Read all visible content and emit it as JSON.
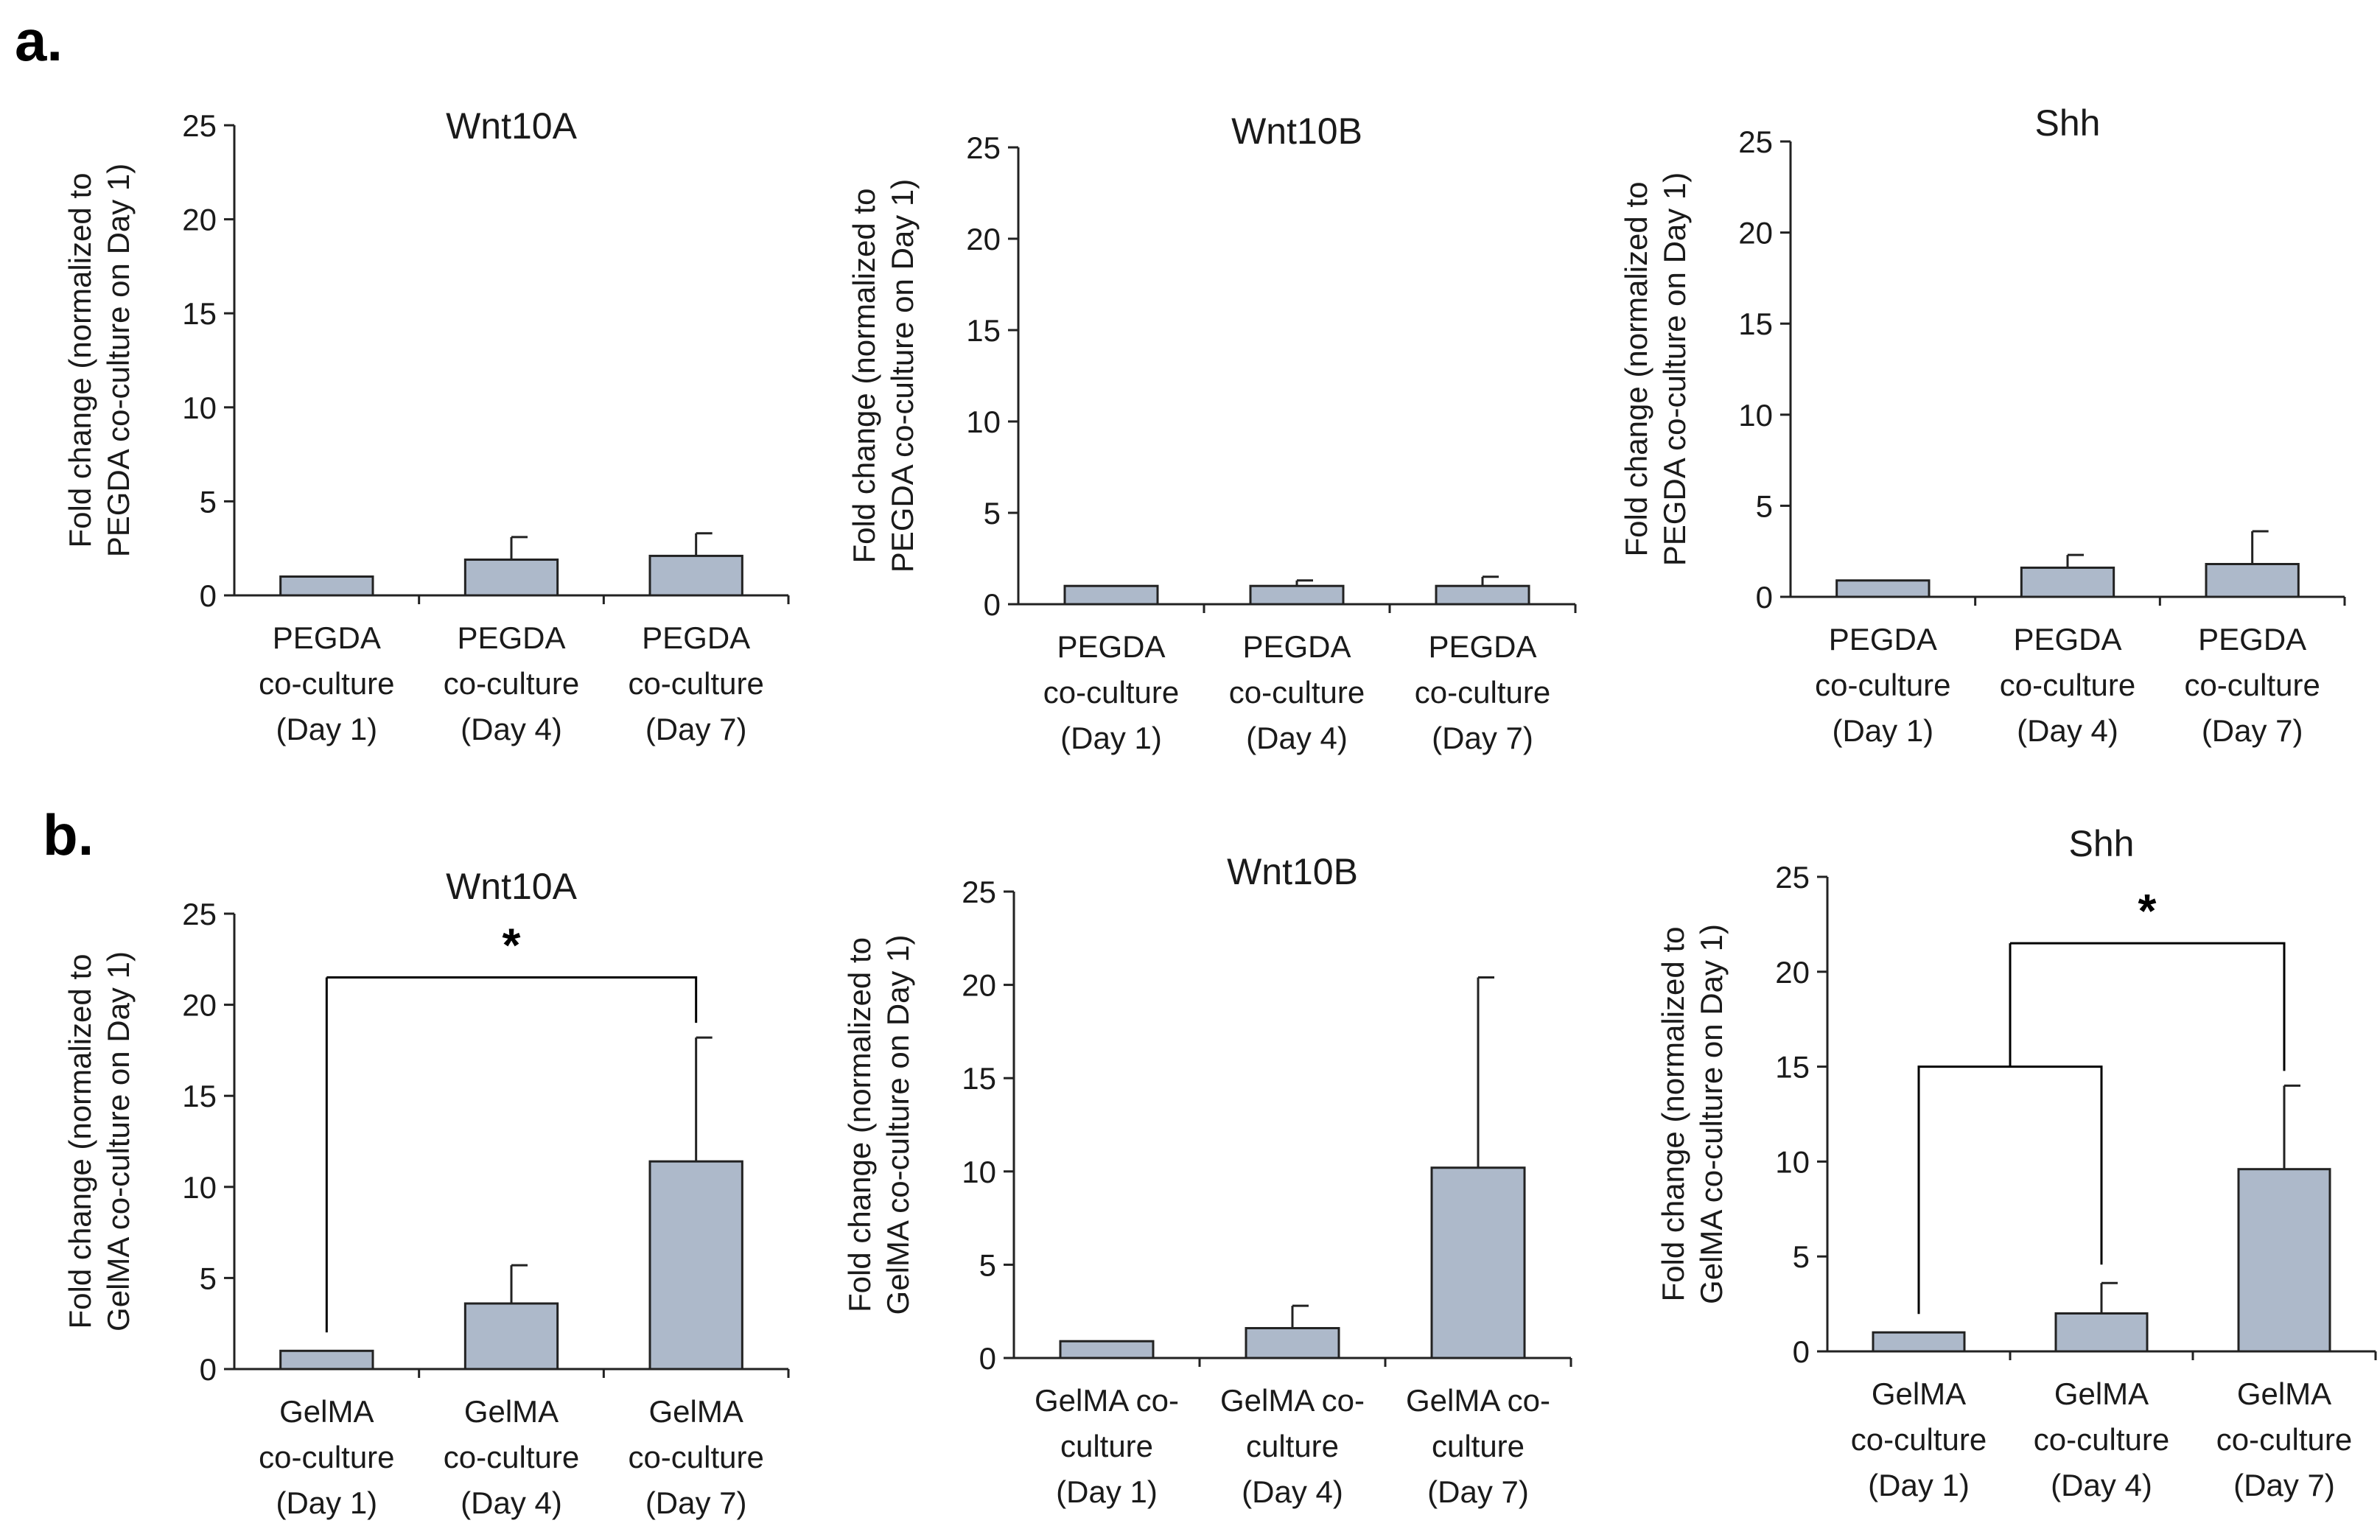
{
  "panels": [
    {
      "label": "a."
    },
    {
      "label": "b."
    }
  ],
  "colors": {
    "bar_fill": "#adb9ca",
    "bar_stroke": "#222222",
    "axis": "#222222"
  },
  "chart_data": [
    {
      "type": "bar",
      "panel": "a",
      "title": "Wnt10A",
      "ylabel": [
        "Fold change (normalized to",
        "PEGDA co-culture on Day 1)"
      ],
      "ylim": [
        0,
        25
      ],
      "yticks": [
        0,
        5,
        10,
        15,
        20,
        25
      ],
      "categories": [
        [
          "PEGDA",
          "co-culture",
          "(Day 1)"
        ],
        [
          "PEGDA",
          "co-culture",
          "(Day 4)"
        ],
        [
          "PEGDA",
          "co-culture",
          "(Day 7)"
        ]
      ],
      "values": [
        1.0,
        1.9,
        2.1
      ],
      "errors": [
        0.0,
        1.2,
        1.2
      ],
      "significance": []
    },
    {
      "type": "bar",
      "panel": "a",
      "title": "Wnt10B",
      "ylabel": [
        "Fold change (normalized to",
        "PEGDA co-culture on Day 1)"
      ],
      "ylim": [
        0,
        25
      ],
      "yticks": [
        0,
        5,
        10,
        15,
        20,
        25
      ],
      "categories": [
        [
          "PEGDA",
          "co-culture",
          "(Day 1)"
        ],
        [
          "PEGDA",
          "co-culture",
          "(Day 4)"
        ],
        [
          "PEGDA",
          "co-culture",
          "(Day 7)"
        ]
      ],
      "values": [
        1.0,
        1.0,
        1.0
      ],
      "errors": [
        0.0,
        0.3,
        0.5
      ],
      "significance": []
    },
    {
      "type": "bar",
      "panel": "a",
      "title": "Shh",
      "ylabel": [
        "Fold change (normalized to",
        "PEGDA co-culture on Day 1)"
      ],
      "ylim": [
        0,
        25
      ],
      "yticks": [
        0,
        5,
        10,
        15,
        20,
        25
      ],
      "categories": [
        [
          "PEGDA",
          "co-culture",
          "(Day 1)"
        ],
        [
          "PEGDA",
          "co-culture",
          "(Day 4)"
        ],
        [
          "PEGDA",
          "co-culture",
          "(Day 7)"
        ]
      ],
      "values": [
        0.9,
        1.6,
        1.8
      ],
      "errors": [
        0.0,
        0.7,
        1.8
      ],
      "significance": []
    },
    {
      "type": "bar",
      "panel": "b",
      "title": "Wnt10A",
      "ylabel": [
        "Fold change (normalized to",
        "GelMA co-culture on Day 1)"
      ],
      "ylim": [
        0,
        25
      ],
      "yticks": [
        0,
        5,
        10,
        15,
        20,
        25
      ],
      "categories": [
        [
          "GelMA",
          "co-culture",
          "(Day 1)"
        ],
        [
          "GelMA",
          "co-culture",
          "(Day 4)"
        ],
        [
          "GelMA",
          "co-culture",
          "(Day 7)"
        ]
      ],
      "values": [
        1.0,
        3.6,
        11.4
      ],
      "errors": [
        0.0,
        2.1,
        6.8
      ],
      "significance": [
        {
          "from": [
            0
          ],
          "to": [
            2
          ],
          "bracket_y": 21.5,
          "label": "*"
        }
      ]
    },
    {
      "type": "bar",
      "panel": "b",
      "title": "Wnt10B",
      "ylabel": [
        "Fold change (normalized to",
        "GelMA co-culture on Day 1)"
      ],
      "ylim": [
        0,
        25
      ],
      "yticks": [
        0,
        5,
        10,
        15,
        20,
        25
      ],
      "categories": [
        [
          "GelMA co-",
          "culture",
          "(Day 1)"
        ],
        [
          "GelMA co-",
          "culture",
          "(Day 4)"
        ],
        [
          "GelMA co-",
          "culture",
          "(Day 7)"
        ]
      ],
      "values": [
        0.9,
        1.6,
        10.2
      ],
      "errors": [
        0.0,
        1.2,
        10.2
      ],
      "significance": []
    },
    {
      "type": "bar",
      "panel": "b",
      "title": "Shh",
      "ylabel": [
        "Fold change (normalized to",
        "GelMA co-culture on Day 1)"
      ],
      "ylim": [
        0,
        25
      ],
      "yticks": [
        0,
        5,
        10,
        15,
        20,
        25
      ],
      "categories": [
        [
          "GelMA",
          "co-culture",
          "(Day 1)"
        ],
        [
          "GelMA",
          "co-culture",
          "(Day 4)"
        ],
        [
          "GelMA",
          "co-culture",
          "(Day 7)"
        ]
      ],
      "values": [
        1.0,
        2.0,
        9.6
      ],
      "errors": [
        0.0,
        1.6,
        4.4
      ],
      "significance": [
        {
          "from": [
            0,
            1
          ],
          "to": [
            2
          ],
          "inner_y": 15.0,
          "bracket_y": 21.5,
          "label": "*"
        }
      ]
    }
  ]
}
